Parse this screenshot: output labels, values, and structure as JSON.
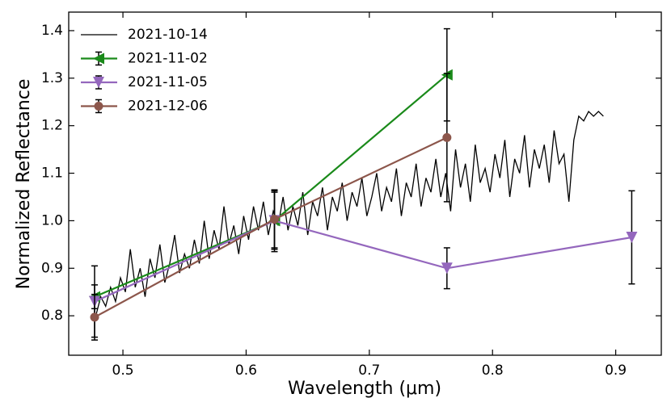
{
  "chart_data": {
    "type": "line",
    "xlabel": "Wavelength (μm)",
    "ylabel": "Normalized Reflectance",
    "xlim": [
      0.456,
      0.937
    ],
    "ylim": [
      0.717,
      1.439
    ],
    "xticks": [
      0.5,
      0.6,
      0.7,
      0.8,
      0.9
    ],
    "yticks": [
      0.8,
      0.9,
      {
        "value": 1,
        "label": "1.0"
      },
      1.1,
      1.2,
      1.3,
      1.4
    ],
    "legend": "upper left",
    "series": [
      {
        "name": "2021-10-14",
        "color": "#000000",
        "marker": "none",
        "x": [
          0.478,
          0.482,
          0.486,
          0.49,
          0.494,
          0.498,
          0.502,
          0.506,
          0.51,
          0.514,
          0.518,
          0.522,
          0.526,
          0.53,
          0.534,
          0.538,
          0.542,
          0.546,
          0.55,
          0.554,
          0.558,
          0.562,
          0.566,
          0.57,
          0.574,
          0.578,
          0.582,
          0.586,
          0.59,
          0.594,
          0.598,
          0.602,
          0.606,
          0.61,
          0.614,
          0.618,
          0.622,
          0.626,
          0.63,
          0.634,
          0.638,
          0.642,
          0.646,
          0.65,
          0.654,
          0.658,
          0.662,
          0.666,
          0.67,
          0.674,
          0.678,
          0.682,
          0.686,
          0.69,
          0.694,
          0.698,
          0.702,
          0.706,
          0.71,
          0.714,
          0.718,
          0.722,
          0.726,
          0.73,
          0.734,
          0.738,
          0.742,
          0.746,
          0.75,
          0.754,
          0.758,
          0.762,
          0.766,
          0.77,
          0.774,
          0.778,
          0.782,
          0.786,
          0.79,
          0.794,
          0.798,
          0.802,
          0.806,
          0.81,
          0.814,
          0.818,
          0.822,
          0.826,
          0.83,
          0.834,
          0.838,
          0.842,
          0.846,
          0.85,
          0.854,
          0.858,
          0.862,
          0.866,
          0.87,
          0.874,
          0.878,
          0.882,
          0.886,
          0.89
        ],
        "values": [
          0.8,
          0.84,
          0.82,
          0.86,
          0.83,
          0.88,
          0.85,
          0.94,
          0.86,
          0.9,
          0.84,
          0.92,
          0.88,
          0.95,
          0.87,
          0.91,
          0.97,
          0.89,
          0.93,
          0.9,
          0.96,
          0.91,
          1.0,
          0.92,
          0.98,
          0.94,
          1.03,
          0.95,
          0.99,
          0.93,
          1.01,
          0.96,
          1.03,
          0.98,
          1.04,
          0.97,
          1.02,
          0.99,
          1.05,
          0.98,
          1.03,
          0.99,
          1.06,
          0.97,
          1.04,
          1.01,
          1.07,
          0.98,
          1.05,
          1.02,
          1.08,
          1.0,
          1.06,
          1.03,
          1.09,
          1.01,
          1.05,
          1.1,
          1.02,
          1.07,
          1.04,
          1.11,
          1.01,
          1.08,
          1.05,
          1.12,
          1.03,
          1.09,
          1.06,
          1.13,
          1.05,
          1.1,
          1.02,
          1.15,
          1.07,
          1.12,
          1.04,
          1.16,
          1.08,
          1.11,
          1.06,
          1.14,
          1.09,
          1.17,
          1.05,
          1.13,
          1.1,
          1.18,
          1.07,
          1.15,
          1.11,
          1.16,
          1.08,
          1.19,
          1.12,
          1.14,
          1.04,
          1.17,
          1.22,
          1.21,
          1.23,
          1.22,
          1.23,
          1.22
        ]
      },
      {
        "name": "2021-11-02",
        "color": "#1a8a1a",
        "marker": "left-triangle",
        "x": [
          0.477,
          0.623,
          0.763
        ],
        "values": [
          0.84,
          1.0,
          1.307
        ],
        "errors": [
          0.025,
          0.065,
          0.097
        ]
      },
      {
        "name": "2021-11-05",
        "color": "#9467bd",
        "marker": "down-triangle",
        "x": [
          0.477,
          0.623,
          0.763,
          0.913
        ],
        "values": [
          0.83,
          1.0,
          0.9,
          0.965
        ],
        "errors": [
          0.075,
          0.06,
          0.043,
          0.098
        ]
      },
      {
        "name": "2021-12-06",
        "color": "#8c564b",
        "marker": "circle",
        "x": [
          0.477,
          0.623,
          0.763
        ],
        "values": [
          0.797,
          1.003,
          1.175
        ],
        "errors": [
          0.048,
          0.06,
          0.135
        ]
      }
    ]
  }
}
